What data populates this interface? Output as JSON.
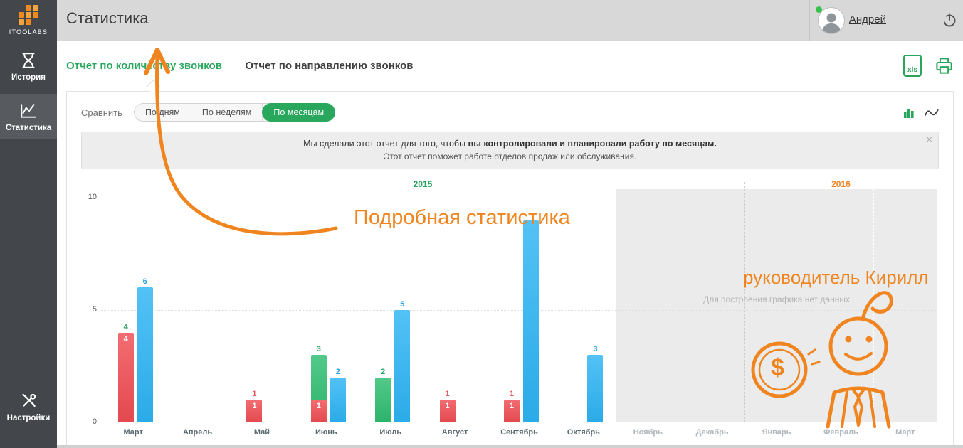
{
  "accent": {
    "green": "#29a85d",
    "orange": "#f0841e",
    "header_bg": "#d8d8d8",
    "sidebar_bg": "#43474b"
  },
  "sidebar": {
    "logo_text": "ITOOLABS",
    "items": [
      {
        "label": "История"
      },
      {
        "label": "Статистика"
      }
    ],
    "bottom_item": {
      "label": "Настройки"
    }
  },
  "header": {
    "title": "Статистика",
    "user_name": "Андрей"
  },
  "tabs": [
    {
      "label": "Отчет по количеству звонков",
      "active": true
    },
    {
      "label": "Отчет по направлению звонков",
      "active": false
    }
  ],
  "toolbar": {
    "xls_label": "xls"
  },
  "compare": {
    "label": "Сравнить",
    "options": [
      {
        "label": "По дням",
        "active": false
      },
      {
        "label": "По неделям",
        "active": false
      },
      {
        "label": "По месяцам",
        "active": true
      }
    ]
  },
  "banner": {
    "line1_prefix": "Мы сделали этот отчет для того, чтобы ",
    "line1_bold": "вы контролировали и планировали работу по месяцам.",
    "line2": "Этот отчет поможет работе отделов продаж или обслуживания.",
    "close": "×"
  },
  "annotations": {
    "detail": "Подробная статистика",
    "manager": "руководитель Кирилл",
    "dollar": "$"
  },
  "chart_data": {
    "type": "bar",
    "ylim": [
      0,
      10
    ],
    "yticks": [
      "10",
      "5",
      "0"
    ],
    "series_colors": {
      "red": "#ef4d53",
      "green": "#2ebd70",
      "blue": "#2db4f4"
    },
    "label_colors": {
      "red": "#e2595e",
      "green": "#27a561",
      "blue": "#2aa3dc"
    },
    "year_sections": [
      {
        "label": "2015",
        "color": "#27a561"
      },
      {
        "label": "2016",
        "color": "#f0841e"
      }
    ],
    "no_data": {
      "text": "Для построения графика нет данных",
      "start_index": 8
    },
    "months": [
      {
        "name": "Март",
        "bars": [
          {
            "slot": 0,
            "series": "green",
            "value": 4,
            "label": "4"
          },
          {
            "slot": 0,
            "series": "red",
            "value": 4,
            "inner": "4"
          },
          {
            "slot": 1,
            "series": "blue",
            "value": 6,
            "label": "6"
          }
        ]
      },
      {
        "name": "Апрель",
        "bars": []
      },
      {
        "name": "Май",
        "bars": [
          {
            "slot": 0,
            "series": "red",
            "value": 1,
            "label": "1",
            "inner": "1"
          }
        ]
      },
      {
        "name": "Июнь",
        "bars": [
          {
            "slot": 0,
            "series": "green",
            "value": 3,
            "label": "3"
          },
          {
            "slot": 0,
            "series": "red",
            "value": 1,
            "inner": "1"
          },
          {
            "slot": 1,
            "series": "blue",
            "value": 2,
            "label": "2"
          }
        ]
      },
      {
        "name": "Июль",
        "bars": [
          {
            "slot": 0,
            "series": "green",
            "value": 2,
            "label": "2"
          },
          {
            "slot": 1,
            "series": "blue",
            "value": 5,
            "label": "5"
          }
        ]
      },
      {
        "name": "Август",
        "bars": [
          {
            "slot": 0,
            "series": "red",
            "value": 1,
            "label": "1",
            "inner": "1"
          }
        ]
      },
      {
        "name": "Сентябрь",
        "bars": [
          {
            "slot": 0,
            "series": "red",
            "value": 1,
            "label": "1",
            "inner": "1"
          },
          {
            "slot": 1,
            "series": "blue",
            "value": 9,
            "label": ""
          }
        ]
      },
      {
        "name": "Октябрь",
        "bars": [
          {
            "slot": 1,
            "series": "blue",
            "value": 3,
            "label": "3"
          }
        ]
      },
      {
        "name": "Ноябрь",
        "bars": []
      },
      {
        "name": "Декабрь",
        "bars": []
      },
      {
        "name": "Январь",
        "bars": []
      },
      {
        "name": "Февраль",
        "bars": []
      },
      {
        "name": "Март",
        "bars": []
      }
    ]
  }
}
